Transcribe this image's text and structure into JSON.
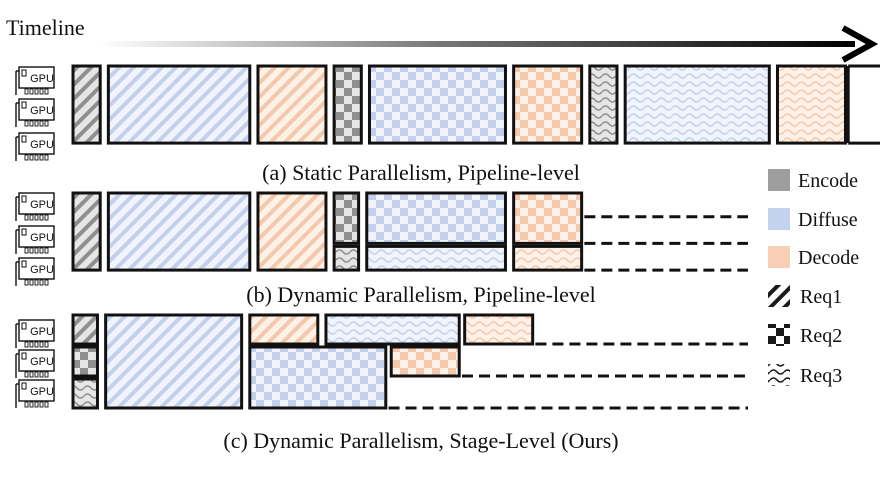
{
  "timeline_label": "Timeline",
  "gpu_label": "GPU",
  "colors": {
    "encode": "#9e9e9e",
    "diffuse": "#c4d2ef",
    "decode": "#f6cfb4",
    "outline": "#111111"
  },
  "legend": {
    "stages": [
      {
        "key": "encode",
        "label": "Encode"
      },
      {
        "key": "diffuse",
        "label": "Diffuse"
      },
      {
        "key": "decode",
        "label": "Decode"
      }
    ],
    "requests": [
      {
        "key": "req1",
        "label": "Req1"
      },
      {
        "key": "req2",
        "label": "Req2"
      },
      {
        "key": "req3",
        "label": "Req3"
      }
    ]
  },
  "panels": [
    {
      "id": "a",
      "caption": "(a) Static Parallelism, Pipeline-level",
      "blocks": [
        {
          "gpus": [
            0,
            2
          ],
          "stage": "encode",
          "req": "req1",
          "start": 0.0,
          "dur": 1.0
        },
        {
          "gpus": [
            0,
            2
          ],
          "stage": "diffuse",
          "req": "req1",
          "start": 1.3,
          "dur": 5.2
        },
        {
          "gpus": [
            0,
            2
          ],
          "stage": "decode",
          "req": "req1",
          "start": 6.8,
          "dur": 2.5
        },
        {
          "gpus": [
            0,
            2
          ],
          "stage": "encode",
          "req": "req2",
          "start": 9.6,
          "dur": 1.0
        },
        {
          "gpus": [
            0,
            2
          ],
          "stage": "diffuse",
          "req": "req2",
          "start": 10.9,
          "dur": 5.0
        },
        {
          "gpus": [
            0,
            2
          ],
          "stage": "decode",
          "req": "req2",
          "start": 16.2,
          "dur": 2.5
        },
        {
          "gpus": [
            0,
            2
          ],
          "stage": "encode",
          "req": "req3",
          "start": 19.0,
          "dur": 1.0
        },
        {
          "gpus": [
            0,
            2
          ],
          "stage": "diffuse",
          "req": "req3",
          "start": 20.3,
          "dur": 5.3
        },
        {
          "gpus": [
            0,
            2
          ],
          "stage": "decode",
          "req": "req3",
          "start": 25.9,
          "dur": 2.5
        }
      ],
      "continuations": [
        {
          "gpus": [
            0,
            2
          ],
          "start": 28.5,
          "style": "bracket"
        }
      ]
    },
    {
      "id": "b",
      "caption": "(b) Dynamic Parallelism, Pipeline-level",
      "blocks": [
        {
          "gpus": [
            0,
            2
          ],
          "stage": "encode",
          "req": "req1",
          "start": 0.0,
          "dur": 1.0
        },
        {
          "gpus": [
            0,
            2
          ],
          "stage": "diffuse",
          "req": "req1",
          "start": 1.3,
          "dur": 5.2
        },
        {
          "gpus": [
            0,
            2
          ],
          "stage": "decode",
          "req": "req1",
          "start": 6.8,
          "dur": 2.5
        },
        {
          "gpus": [
            0,
            1
          ],
          "stage": "encode",
          "req": "req2",
          "start": 9.6,
          "dur": 0.9
        },
        {
          "gpus": [
            0,
            1
          ],
          "stage": "diffuse",
          "req": "req2",
          "start": 10.8,
          "dur": 5.1
        },
        {
          "gpus": [
            0,
            1
          ],
          "stage": "decode",
          "req": "req2",
          "start": 16.2,
          "dur": 2.5
        },
        {
          "gpus": [
            2,
            2
          ],
          "stage": "encode",
          "req": "req3",
          "start": 9.6,
          "dur": 0.9
        },
        {
          "gpus": [
            2,
            2
          ],
          "stage": "diffuse",
          "req": "req3",
          "start": 10.8,
          "dur": 5.1
        },
        {
          "gpus": [
            2,
            2
          ],
          "stage": "decode",
          "req": "req3",
          "start": 16.2,
          "dur": 2.5
        }
      ],
      "continuations": [
        {
          "gpus": [
            0,
            0
          ],
          "start": 18.8,
          "style": "dash"
        },
        {
          "gpus": [
            1,
            1
          ],
          "start": 18.8,
          "style": "dash"
        },
        {
          "gpus": [
            2,
            2
          ],
          "start": 18.8,
          "style": "dash"
        }
      ]
    },
    {
      "id": "c",
      "caption": "(c) Dynamic Parallelism, Stage-Level (Ours)",
      "blocks": [
        {
          "gpus": [
            0,
            0
          ],
          "stage": "encode",
          "req": "req1",
          "start": 0.0,
          "dur": 0.9
        },
        {
          "gpus": [
            1,
            1
          ],
          "stage": "encode",
          "req": "req2",
          "start": 0.0,
          "dur": 0.9
        },
        {
          "gpus": [
            2,
            2
          ],
          "stage": "encode",
          "req": "req3",
          "start": 0.0,
          "dur": 0.9
        },
        {
          "gpus": [
            0,
            2
          ],
          "stage": "diffuse",
          "req": "req1",
          "start": 1.2,
          "dur": 5.0
        },
        {
          "gpus": [
            0,
            0
          ],
          "stage": "decode",
          "req": "req1",
          "start": 6.5,
          "dur": 2.5
        },
        {
          "gpus": [
            0,
            0
          ],
          "stage": "diffuse",
          "req": "req3",
          "start": 9.3,
          "dur": 4.9
        },
        {
          "gpus": [
            0,
            0
          ],
          "stage": "decode",
          "req": "req3",
          "start": 14.4,
          "dur": 2.5
        },
        {
          "gpus": [
            1,
            2
          ],
          "stage": "diffuse",
          "req": "req2",
          "start": 6.5,
          "dur": 5.0
        },
        {
          "gpus": [
            1,
            1
          ],
          "stage": "decode",
          "req": "req2",
          "start": 11.7,
          "dur": 2.5
        }
      ],
      "continuations": [
        {
          "gpus": [
            0,
            0
          ],
          "start": 17.0,
          "style": "dash"
        },
        {
          "gpus": [
            1,
            1
          ],
          "start": 14.3,
          "style": "dash"
        },
        {
          "gpus": [
            2,
            2
          ],
          "start": 11.6,
          "style": "dash"
        }
      ]
    }
  ]
}
